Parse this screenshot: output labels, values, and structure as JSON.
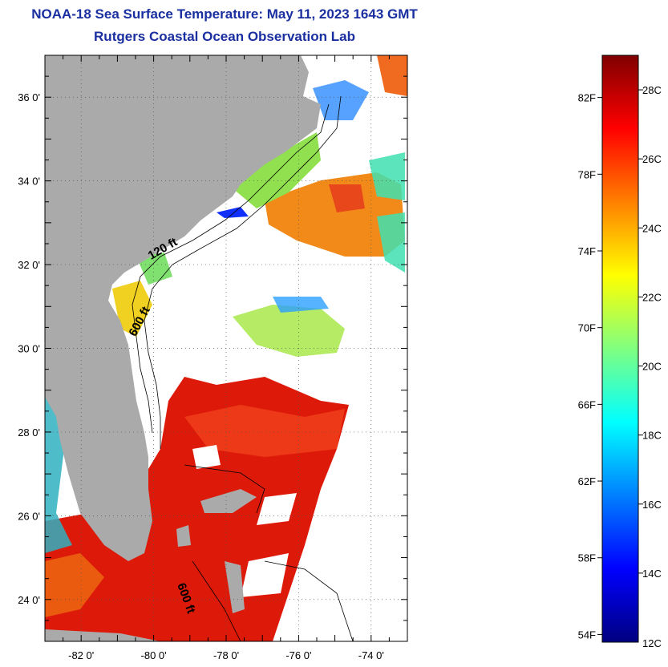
{
  "title": "NOAA-18 Sea Surface Temperature:  May 11, 2023 1643 GMT",
  "subtitle": "Rutgers Coastal Ocean Observation Lab",
  "map": {
    "lon_range": [
      -83,
      -73
    ],
    "lat_range": [
      23,
      37
    ],
    "lat_ticks": [
      {
        "value": 36,
        "label": "36 0'"
      },
      {
        "value": 34,
        "label": "34 0'"
      },
      {
        "value": 32,
        "label": "32 0'"
      },
      {
        "value": 30,
        "label": "30 0'"
      },
      {
        "value": 28,
        "label": "28 0'"
      },
      {
        "value": 26,
        "label": "26 0'"
      },
      {
        "value": 24,
        "label": "24 0'"
      }
    ],
    "lon_ticks": [
      {
        "value": -82,
        "label": "-82 0'"
      },
      {
        "value": -80,
        "label": "-80 0'"
      },
      {
        "value": -78,
        "label": "-78 0'"
      },
      {
        "value": -76,
        "label": "-76 0'"
      },
      {
        "value": -74,
        "label": "-74 0'"
      }
    ],
    "contour_labels": [
      {
        "text": "120 ft",
        "lon": -79.7,
        "lat": 32.3,
        "rotate": -30
      },
      {
        "text": "600 ft",
        "lon": -80.3,
        "lat": 30.6,
        "rotate": -62
      },
      {
        "text": "600 ft",
        "lon": -79.2,
        "lat": 24.0,
        "rotate": 70
      }
    ],
    "land_color": "#aaaaaa",
    "nodata_color": "#ffffff"
  },
  "colorbar": {
    "min_c": 12,
    "max_c": 29,
    "c_labels": [
      {
        "value": 28,
        "label": "28C"
      },
      {
        "value": 26,
        "label": "26C"
      },
      {
        "value": 24,
        "label": "24C"
      },
      {
        "value": 22,
        "label": "22C"
      },
      {
        "value": 20,
        "label": "20C"
      },
      {
        "value": 18,
        "label": "18C"
      },
      {
        "value": 16,
        "label": "16C"
      },
      {
        "value": 14,
        "label": "14C"
      },
      {
        "value": 12,
        "label": "12C"
      }
    ],
    "f_labels": [
      {
        "value": 82,
        "label": "82F"
      },
      {
        "value": 78,
        "label": "78F"
      },
      {
        "value": 74,
        "label": "74F"
      },
      {
        "value": 70,
        "label": "70F"
      },
      {
        "value": 66,
        "label": "66F"
      },
      {
        "value": 62,
        "label": "62F"
      },
      {
        "value": 58,
        "label": "58F"
      },
      {
        "value": 54,
        "label": "54F"
      }
    ],
    "colors": [
      "#000080",
      "#0000ff",
      "#0080ff",
      "#00ffff",
      "#80ff80",
      "#ffff00",
      "#ff8000",
      "#ff0000",
      "#800000"
    ]
  }
}
